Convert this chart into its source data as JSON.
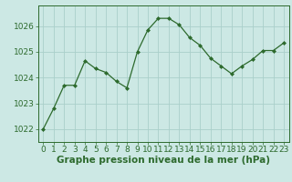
{
  "x": [
    0,
    1,
    2,
    3,
    4,
    5,
    6,
    7,
    8,
    9,
    10,
    11,
    12,
    13,
    14,
    15,
    16,
    17,
    18,
    19,
    20,
    21,
    22,
    23
  ],
  "y": [
    1022.0,
    1022.8,
    1023.7,
    1023.7,
    1024.65,
    1024.35,
    1024.2,
    1023.85,
    1023.6,
    1025.0,
    1025.85,
    1026.3,
    1026.3,
    1026.05,
    1025.55,
    1025.25,
    1024.75,
    1024.45,
    1024.15,
    1024.45,
    1024.7,
    1025.05,
    1025.05,
    1025.35
  ],
  "line_color": "#2d6a2d",
  "marker": "D",
  "marker_size": 2.0,
  "bg_color": "#cce8e4",
  "grid_color": "#aacfca",
  "xlabel": "Graphe pression niveau de la mer (hPa)",
  "xlabel_fontsize": 7.5,
  "tick_fontsize": 6.5,
  "ylim": [
    1021.5,
    1026.8
  ],
  "yticks": [
    1022,
    1023,
    1024,
    1025,
    1026
  ],
  "xticks": [
    0,
    1,
    2,
    3,
    4,
    5,
    6,
    7,
    8,
    9,
    10,
    11,
    12,
    13,
    14,
    15,
    16,
    17,
    18,
    19,
    20,
    21,
    22,
    23
  ]
}
